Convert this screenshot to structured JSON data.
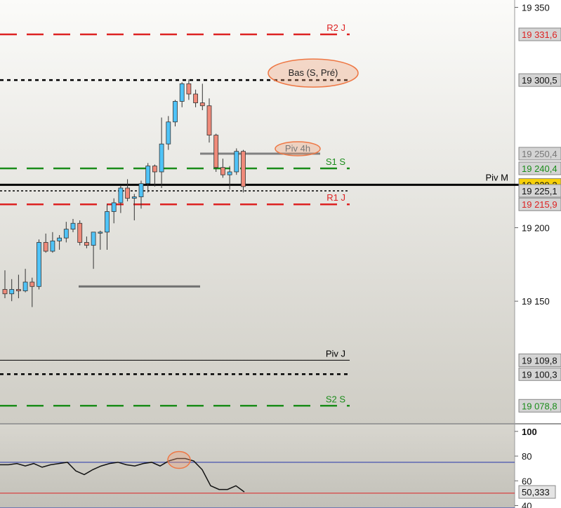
{
  "chart_data": [
    {
      "type": "candlestick",
      "ylim": [
        19067,
        19355
      ],
      "yticks": [
        {
          "value": 19350,
          "label": "19 350"
        },
        {
          "value": 19200,
          "label": "19 200"
        },
        {
          "value": 19150,
          "label": "19 150"
        }
      ],
      "candles": [
        {
          "o": 19158,
          "h": 19171,
          "l": 19152,
          "c": 19155
        },
        {
          "o": 19155,
          "h": 19165,
          "l": 19150,
          "c": 19158
        },
        {
          "o": 19158,
          "h": 19168,
          "l": 19152,
          "c": 19157
        },
        {
          "o": 19157,
          "h": 19172,
          "l": 19156,
          "c": 19163
        },
        {
          "o": 19163,
          "h": 19166,
          "l": 19146,
          "c": 19160
        },
        {
          "o": 19160,
          "h": 19192,
          "l": 19158,
          "c": 19190
        },
        {
          "o": 19190,
          "h": 19196,
          "l": 19183,
          "c": 19184
        },
        {
          "o": 19184,
          "h": 19197,
          "l": 19183,
          "c": 19191
        },
        {
          "o": 19191,
          "h": 19195,
          "l": 19185,
          "c": 19193
        },
        {
          "o": 19193,
          "h": 19204,
          "l": 19190,
          "c": 19199
        },
        {
          "o": 19199,
          "h": 19206,
          "l": 19197,
          "c": 19203
        },
        {
          "o": 19203,
          "h": 19205,
          "l": 19188,
          "c": 19190
        },
        {
          "o": 19190,
          "h": 19194,
          "l": 19186,
          "c": 19188
        },
        {
          "o": 19188,
          "h": 19197,
          "l": 19172,
          "c": 19197
        },
        {
          "o": 19197,
          "h": 19198,
          "l": 19185,
          "c": 19197
        },
        {
          "o": 19197,
          "h": 19216,
          "l": 19185,
          "c": 19211
        },
        {
          "o": 19211,
          "h": 19220,
          "l": 19203,
          "c": 19217
        },
        {
          "o": 19217,
          "h": 19229,
          "l": 19210,
          "c": 19227
        },
        {
          "o": 19227,
          "h": 19233,
          "l": 19218,
          "c": 19220
        },
        {
          "o": 19220,
          "h": 19223,
          "l": 19205,
          "c": 19221
        },
        {
          "o": 19221,
          "h": 19232,
          "l": 19213,
          "c": 19230
        },
        {
          "o": 19230,
          "h": 19244,
          "l": 19224,
          "c": 19242
        },
        {
          "o": 19242,
          "h": 19243,
          "l": 19228,
          "c": 19238
        },
        {
          "o": 19238,
          "h": 19275,
          "l": 19227,
          "c": 19257
        },
        {
          "o": 19257,
          "h": 19276,
          "l": 19253,
          "c": 19272
        },
        {
          "o": 19272,
          "h": 19287,
          "l": 19269,
          "c": 19286
        },
        {
          "o": 19286,
          "h": 19299,
          "l": 19282,
          "c": 19298
        },
        {
          "o": 19298,
          "h": 19301,
          "l": 19287,
          "c": 19291
        },
        {
          "o": 19291,
          "h": 19294,
          "l": 19282,
          "c": 19285
        },
        {
          "o": 19285,
          "h": 19298,
          "l": 19280,
          "c": 19283
        },
        {
          "o": 19283,
          "h": 19288,
          "l": 19258,
          "c": 19263
        },
        {
          "o": 19263,
          "h": 19264,
          "l": 19238,
          "c": 19241
        },
        {
          "o": 19241,
          "h": 19247,
          "l": 19234,
          "c": 19236
        },
        {
          "o": 19236,
          "h": 19242,
          "l": 19226,
          "c": 19238
        },
        {
          "o": 19238,
          "h": 19254,
          "l": 19236,
          "c": 19252
        },
        {
          "o": 19252,
          "h": 19253,
          "l": 19224,
          "c": 19228
        }
      ],
      "levels": [
        {
          "value": 19331.6,
          "label": "R2 J",
          "price_label": "19 331,6",
          "color": "#dd2222",
          "style": "dash",
          "label_side": "right",
          "line_end": "chart"
        },
        {
          "value": 19300.5,
          "label": "Bas (S, Pré)",
          "price_label": "19 300,5",
          "color": "#000000",
          "style": "dot",
          "label_side": "ellipse",
          "line_end": "chart"
        },
        {
          "value": 19250.4,
          "label": "Piv 4h",
          "price_label": "19 250,4",
          "color": "#808080",
          "style": "solid",
          "label_side": "ellipse",
          "line_end": "segment"
        },
        {
          "value": 19240.4,
          "label": "S1 S",
          "price_label": "19 240,4",
          "color": "#1a8c1a",
          "style": "dash",
          "label_side": "right",
          "line_end": "chart"
        },
        {
          "value": 19229.2,
          "label": "Piv M",
          "price_label": "19 229,2",
          "color": "#000000",
          "style": "solid-thick",
          "label_side": "right-far",
          "line_end": "axis"
        },
        {
          "value": 19225.1,
          "label": "",
          "price_label": "19 225,1",
          "color": "#000000",
          "style": "dot-fine",
          "label_side": "none",
          "line_end": "chart"
        },
        {
          "value": 19215.9,
          "label": "R1 J",
          "price_label": "19 215,9",
          "color": "#dd2222",
          "style": "dash",
          "label_side": "right",
          "line_end": "chart"
        },
        {
          "value": 19109.8,
          "label": "Piv J",
          "price_label": "19 109,8",
          "color": "#000000",
          "style": "solid-thin",
          "label_side": "right",
          "line_end": "chart"
        },
        {
          "value": 19100.3,
          "label": "",
          "price_label": "19 100,3",
          "color": "#000000",
          "style": "dot",
          "label_side": "none",
          "line_end": "chart"
        },
        {
          "value": 19078.8,
          "label": "S2 S",
          "price_label": "19 078,8",
          "color": "#1a8c1a",
          "style": "dash",
          "label_side": "right",
          "line_end": "chart"
        }
      ],
      "support_segment": {
        "value": 19160
      }
    },
    {
      "type": "line",
      "ylim": [
        38,
        105
      ],
      "yticks": [
        {
          "value": 100,
          "label": "100"
        },
        {
          "value": 80,
          "label": "80"
        },
        {
          "value": 60,
          "label": "60"
        },
        {
          "value": 40,
          "label": "40"
        }
      ],
      "current_label": "50,333",
      "reference_lines": [
        {
          "value": 75,
          "color": "#2233aa"
        },
        {
          "value": 50,
          "color": "#dd2222"
        },
        {
          "value": 38,
          "color": "#2233aa"
        }
      ],
      "values": [
        73,
        73,
        74,
        72,
        74,
        71,
        73,
        74,
        75,
        68,
        65,
        69,
        72,
        74,
        75,
        73,
        72,
        74,
        75,
        72,
        76,
        78,
        78,
        76,
        69,
        56,
        53,
        53,
        56,
        51
      ]
    }
  ]
}
